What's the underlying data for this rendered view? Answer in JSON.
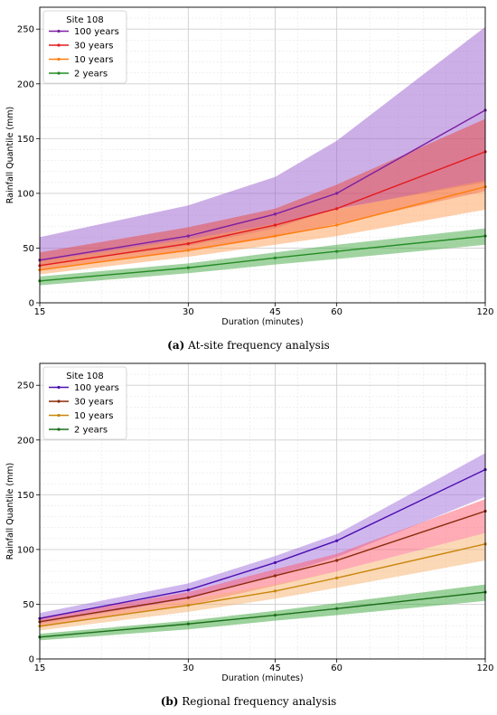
{
  "captions": [
    {
      "letter": "(a)",
      "text": " At-site frequency analysis"
    },
    {
      "letter": "(b)",
      "text": " Regional frequency analysis"
    }
  ],
  "chart_data": [
    {
      "type": "line",
      "xlabel": "Duration (minutes)",
      "ylabel": "Rainfall Quantile (mm)",
      "x_scale": "log",
      "xlim": [
        15,
        120
      ],
      "ylim": [
        0,
        270
      ],
      "x_ticks": [
        15,
        30,
        45,
        60,
        120
      ],
      "y_ticks": [
        0,
        50,
        100,
        150,
        200,
        250
      ],
      "grid": true,
      "legend_title": "Site 108",
      "legend_position": "top-left",
      "x": [
        15,
        30,
        45,
        60,
        120
      ],
      "series": [
        {
          "name": "100 years",
          "color": "#7b1fa2",
          "band_color": "#9c5fd0",
          "values": [
            39,
            61,
            81,
            100,
            176
          ],
          "lower": [
            34,
            52,
            68,
            86,
            110
          ],
          "upper": [
            60,
            89,
            115,
            148,
            252
          ]
        },
        {
          "name": "30 years",
          "color": "#e41a1c",
          "band_color": "#e8473e",
          "values": [
            34,
            54,
            71,
            86,
            138
          ],
          "lower": [
            30,
            47,
            60,
            72,
            102
          ],
          "upper": [
            46,
            69,
            86,
            108,
            168
          ]
        },
        {
          "name": "10 years",
          "color": "#ff7f0e",
          "band_color": "#ffa058",
          "values": [
            30,
            48,
            61,
            71,
            106
          ],
          "lower": [
            26,
            42,
            53,
            61,
            85
          ],
          "upper": [
            38,
            58,
            72,
            85,
            112
          ]
        },
        {
          "name": "2 years",
          "color": "#238b23",
          "band_color": "#43a843",
          "values": [
            20,
            32,
            41,
            47,
            61
          ],
          "lower": [
            16,
            27,
            35,
            40,
            53
          ],
          "upper": [
            24,
            36,
            46,
            53,
            68
          ]
        }
      ]
    },
    {
      "type": "line",
      "xlabel": "Duration (minutes)",
      "ylabel": "Rainfall Quantile (mm)",
      "x_scale": "log",
      "xlim": [
        15,
        120
      ],
      "ylim": [
        0,
        270
      ],
      "x_ticks": [
        15,
        30,
        45,
        60,
        120
      ],
      "y_ticks": [
        0,
        50,
        100,
        150,
        200,
        250
      ],
      "grid": true,
      "legend_title": "Site 108",
      "legend_position": "top-left",
      "x": [
        15,
        30,
        45,
        60,
        120
      ],
      "series": [
        {
          "name": "100 years",
          "color": "#4b0eb0",
          "band_color": "#9f6fdc",
          "values": [
            37,
            63,
            88,
            108,
            173
          ],
          "lower": [
            32,
            55,
            76,
            93,
            148
          ],
          "upper": [
            42,
            69,
            94,
            114,
            188
          ]
        },
        {
          "name": "30 years",
          "color": "#8b2a0a",
          "band_color": "#ff5a6e",
          "values": [
            34,
            56,
            76,
            90,
            135
          ],
          "lower": [
            29,
            49,
            67,
            80,
            115
          ],
          "upper": [
            38,
            61,
            82,
            96,
            146
          ]
        },
        {
          "name": "10 years",
          "color": "#c8860a",
          "band_color": "#f7b26e",
          "values": [
            30,
            49,
            62,
            74,
            105
          ],
          "lower": [
            26,
            43,
            55,
            65,
            90
          ],
          "upper": [
            34,
            54,
            68,
            80,
            115
          ]
        },
        {
          "name": "2 years",
          "color": "#1b6e1b",
          "band_color": "#3aa53a",
          "values": [
            20,
            32,
            40,
            46,
            61
          ],
          "lower": [
            17,
            27,
            35,
            40,
            53
          ],
          "upper": [
            23,
            35,
            44,
            51,
            68
          ]
        }
      ]
    }
  ]
}
